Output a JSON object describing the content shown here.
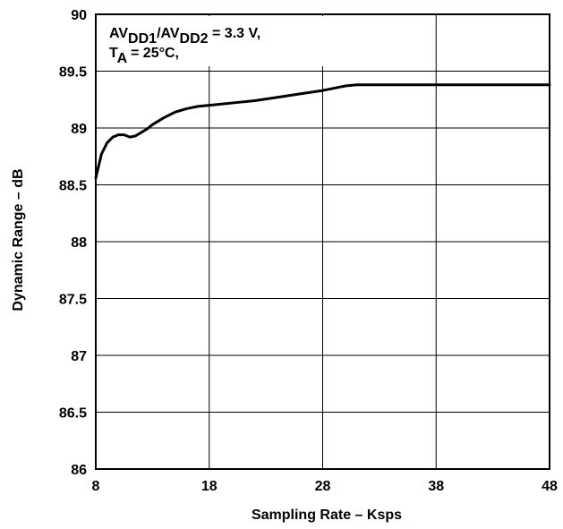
{
  "chart_data": {
    "type": "line",
    "title": "",
    "xlabel": "Sampling Rate – Ksps",
    "ylabel": "Dynamic Range – dB",
    "xlim": [
      8,
      48
    ],
    "ylim": [
      86,
      90
    ],
    "xticks": [
      8,
      18,
      28,
      38,
      48
    ],
    "yticks": [
      86,
      86.5,
      87,
      87.5,
      88,
      88.5,
      89,
      89.5,
      90
    ],
    "xtick_labels": [
      "8",
      "18",
      "28",
      "38",
      "48"
    ],
    "ytick_labels": [
      "86",
      "86.5",
      "87",
      "87.5",
      "88",
      "88.5",
      "89",
      "89.5",
      "90"
    ],
    "grid": true,
    "annotation": {
      "line1": {
        "a": "AV",
        "b": "DD1",
        "c": "/AV",
        "d": "DD2",
        "e": " = 3.3 V,"
      },
      "line2": {
        "a": "T",
        "b": "A",
        "c": " = 25°C,"
      }
    },
    "series": [
      {
        "x": [
          8,
          8.5,
          9,
          9.5,
          10,
          10.5,
          11,
          11.5,
          12,
          12.5,
          13,
          14,
          15,
          16,
          17,
          18,
          20,
          22,
          24,
          26,
          28,
          29,
          30,
          31,
          35,
          40,
          45,
          48
        ],
        "y": [
          88.56,
          88.77,
          88.87,
          88.92,
          88.94,
          88.94,
          88.92,
          88.93,
          88.96,
          88.99,
          89.03,
          89.09,
          89.14,
          89.17,
          89.19,
          89.2,
          89.22,
          89.24,
          89.27,
          89.3,
          89.33,
          89.35,
          89.37,
          89.38,
          89.38,
          89.38,
          89.38,
          89.38
        ]
      }
    ]
  }
}
